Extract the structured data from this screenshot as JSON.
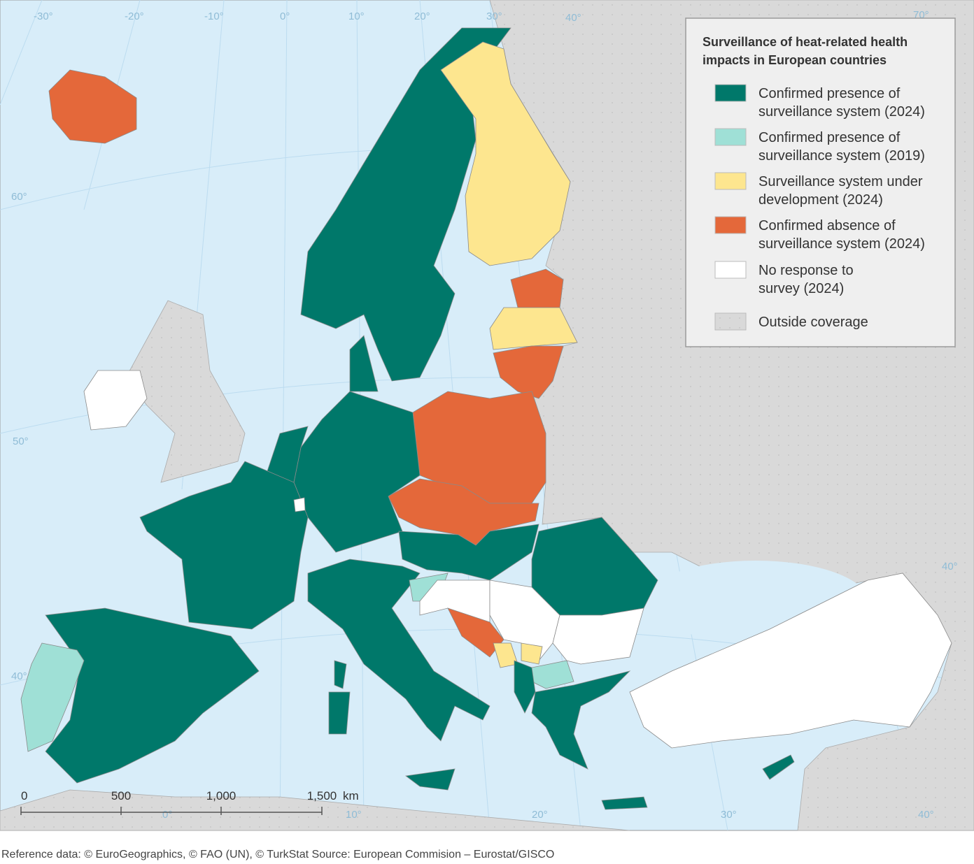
{
  "legend": {
    "title_lines": [
      "Surveillance of heat-related health",
      "impacts in European countries"
    ],
    "items": [
      {
        "lines": [
          "Confirmed presence of",
          "surveillance system (2024)"
        ],
        "color": "#00786a"
      },
      {
        "lines": [
          "Confirmed presence of",
          "surveillance system (2019)"
        ],
        "color": "#9fe0d6"
      },
      {
        "lines": [
          "Surveillance system under",
          "development (2024)"
        ],
        "color": "#fde68f"
      },
      {
        "lines": [
          "Confirmed absence of",
          "surveillance system (2024)"
        ],
        "color": "#e4683a"
      },
      {
        "lines": [
          "No response to",
          "survey (2024)"
        ],
        "color": "#ffffff"
      },
      {
        "lines": [
          "Outside coverage"
        ],
        "color": "#d9d9d9"
      }
    ]
  },
  "graticule": {
    "top": [
      "-30°",
      "-20°",
      "-10°",
      "0°",
      "10°",
      "20°",
      "30°",
      "40°",
      "70°"
    ],
    "left": [
      "60°",
      "50°",
      "40°"
    ],
    "right": [
      "40°"
    ],
    "bottom": [
      "0°",
      "10°",
      "20°",
      "30°",
      "40°"
    ]
  },
  "scale_bar": {
    "labels": [
      "0",
      "500",
      "1,000",
      "1,500"
    ],
    "unit": "km"
  },
  "footer": "Reference data: © EuroGeographics, © FAO (UN), © TurkStat Source: European Commision – Eurostat/GISCO"
}
